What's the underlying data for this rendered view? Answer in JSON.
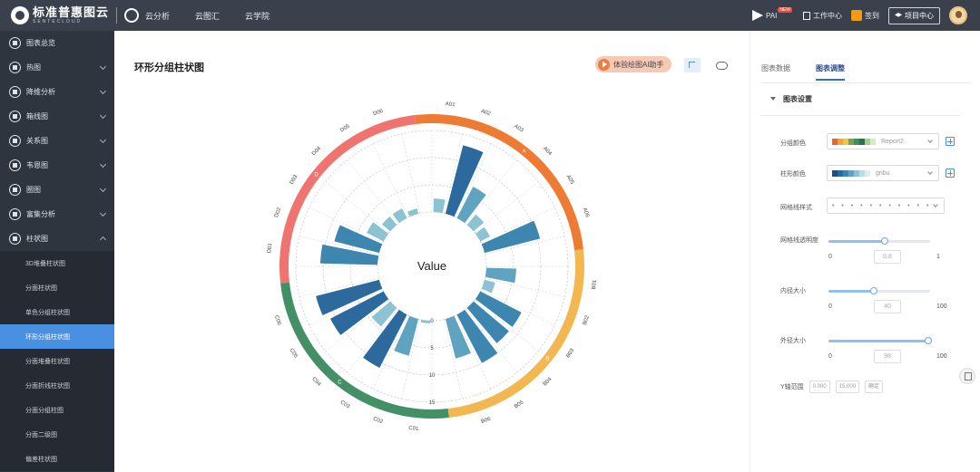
{
  "header": {
    "logo_text": "标准普惠图云",
    "logo_sub": "SENTECLOUD",
    "nav": [
      "云分析",
      "云图汇",
      "云学院"
    ],
    "pai_label": "PAI",
    "pai_badge": "NEW",
    "workbench": "工作中心",
    "sign": "签到",
    "project_center": "项目中心"
  },
  "sidebar": {
    "items": [
      {
        "label": "图表总览",
        "icon": "grid-icon",
        "chevron": false
      },
      {
        "label": "热图",
        "icon": "heatmap-icon",
        "chevron": true
      },
      {
        "label": "降维分析",
        "icon": "scatter-icon",
        "chevron": true
      },
      {
        "label": "箱线图",
        "icon": "boxplot-icon",
        "chevron": true
      },
      {
        "label": "关系图",
        "icon": "network-icon",
        "chevron": true
      },
      {
        "label": "韦恩图",
        "icon": "venn-icon",
        "chevron": true
      },
      {
        "label": "圈图",
        "icon": "circos-icon",
        "chevron": true
      },
      {
        "label": "富集分析",
        "icon": "enrichment-icon",
        "chevron": true
      },
      {
        "label": "柱状图",
        "icon": "bar-chart-icon",
        "chevron": true,
        "expanded": true
      }
    ],
    "sub_items": [
      {
        "label": "3D堆叠柱状图",
        "active": false
      },
      {
        "label": "分面柱状图",
        "active": false
      },
      {
        "label": "单色分组柱状图",
        "active": false
      },
      {
        "label": "环形分组柱状图",
        "active": true
      },
      {
        "label": "分面堆叠柱状图",
        "active": false
      },
      {
        "label": "分面折线柱状图",
        "active": false
      },
      {
        "label": "分面分组柱图",
        "active": false
      },
      {
        "label": "分面二级图",
        "active": false
      },
      {
        "label": "偏差柱状图",
        "active": false
      }
    ]
  },
  "main": {
    "title": "环形分组柱状图",
    "ai_button": "体验绘图AI助手"
  },
  "chart_data": {
    "type": "bar",
    "polar": true,
    "center_label": "Value",
    "radial_ticks": [
      0,
      5,
      10,
      15
    ],
    "rlim": [
      0,
      15
    ],
    "grid": true,
    "groups": [
      {
        "name": "A",
        "color": "#ee7b33",
        "categories": [
          "A01",
          "A02",
          "A03",
          "A04",
          "A05",
          "A06"
        ],
        "values": [
          2.5,
          13.0,
          6.5,
          2.5,
          2.0,
          10.5
        ]
      },
      {
        "name": "B",
        "color": "#f3b752",
        "categories": [
          "B01",
          "B02",
          "B03",
          "B04",
          "B05",
          "B06"
        ],
        "values": [
          5.5,
          2.0,
          8.5,
          8.5,
          10.0,
          7.5
        ]
      },
      {
        "name": "C",
        "color": "#439067",
        "categories": [
          "C01",
          "C02",
          "C03",
          "C04",
          "C05",
          "C06"
        ],
        "values": [
          0.5,
          7.0,
          11.0,
          4.5,
          11.0,
          12.0
        ]
      },
      {
        "name": "D",
        "color": "#ef7470",
        "categories": [
          "D01",
          "D02",
          "D03",
          "D04",
          "D05",
          "D06"
        ],
        "values": [
          10.5,
          8.5,
          3.5,
          2.0,
          2.0,
          1.0
        ]
      }
    ]
  },
  "rpanel": {
    "tabs": [
      "图表数据",
      "图表调整"
    ],
    "active_tab": 1,
    "section": "图表设置",
    "group_color_label": "分组颜色",
    "group_color_value": "Report2",
    "group_swatches": [
      "#e8652b",
      "#f2a33a",
      "#e3c84b",
      "#72a45b",
      "#3f8f5a",
      "#2f6f4f",
      "#a6d08a",
      "#d6ebc4"
    ],
    "bar_color_label": "柱形颜色",
    "bar_color_value": "gnbu",
    "bar_swatches": [
      "#1d4e89",
      "#2c6a9e",
      "#3d86b0",
      "#5fa3c1",
      "#8cc2d1",
      "#b9dde0",
      "#dff0ec"
    ],
    "grid_style_label": "网格线样式",
    "grid_style_value": "• • • • • • • • • • •",
    "grid_alpha_label": "网格线透明度",
    "grid_alpha": {
      "min": "0",
      "max": "1",
      "value": "0.8",
      "fraction": 0.55
    },
    "inner_label": "内径大小",
    "inner": {
      "min": "0",
      "max": "100",
      "value": "40",
      "fraction": 0.45
    },
    "outer_label": "外径大小",
    "outer": {
      "min": "0",
      "max": "100",
      "value": "98",
      "fraction": 0.98
    },
    "bottom_label": "Y轴范围",
    "bottom_inputs": [
      "0.000",
      "15.000",
      "确定"
    ]
  }
}
